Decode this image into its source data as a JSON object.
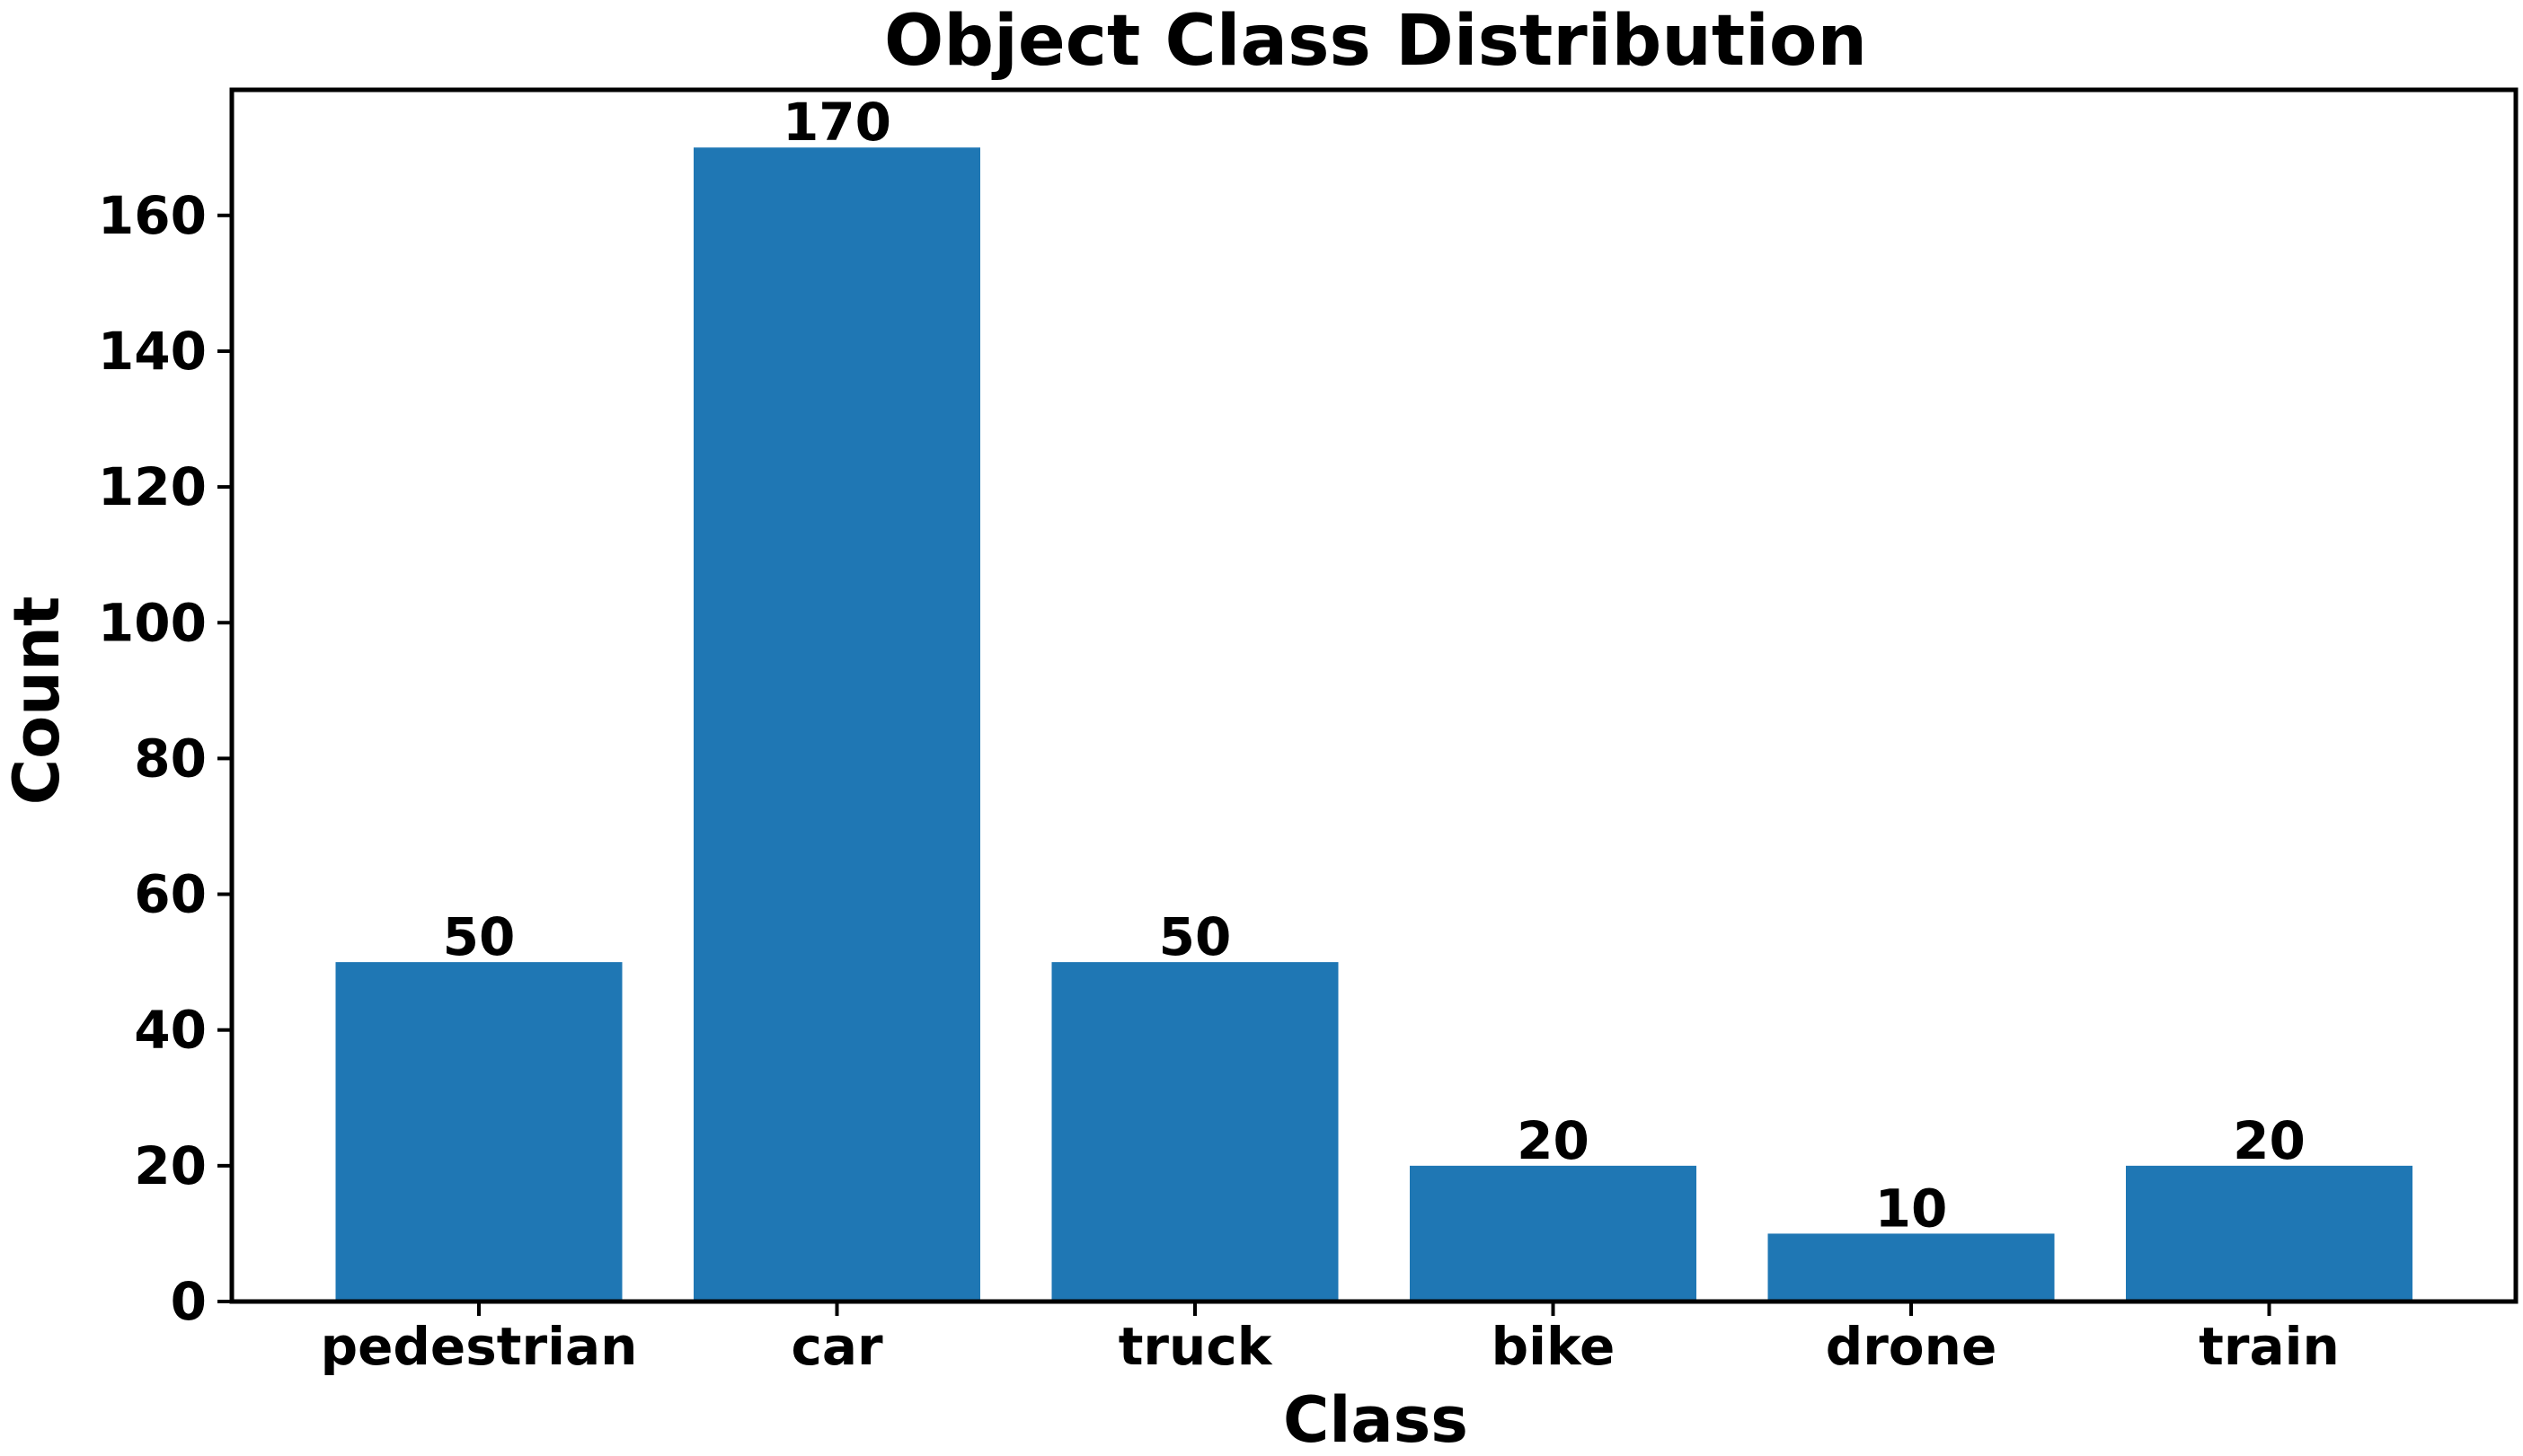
{
  "chart_data": {
    "type": "bar",
    "title": "Object Class Distribution",
    "xlabel": "Class",
    "ylabel": "Count",
    "categories": [
      "pedestrian",
      "car",
      "truck",
      "bike",
      "drone",
      "train"
    ],
    "values": [
      50,
      170,
      50,
      20,
      10,
      20
    ],
    "data_labels": [
      "50",
      "170",
      "50",
      "20",
      "10",
      "20"
    ],
    "ylim": [
      0,
      178.5
    ],
    "yticks": [
      0,
      20,
      40,
      60,
      80,
      100,
      120,
      140,
      160
    ],
    "ytick_labels": [
      "0",
      "20",
      "40",
      "60",
      "80",
      "100",
      "120",
      "140",
      "160"
    ],
    "grid": false,
    "legend": "none",
    "bar_color": "#1f77b4"
  }
}
